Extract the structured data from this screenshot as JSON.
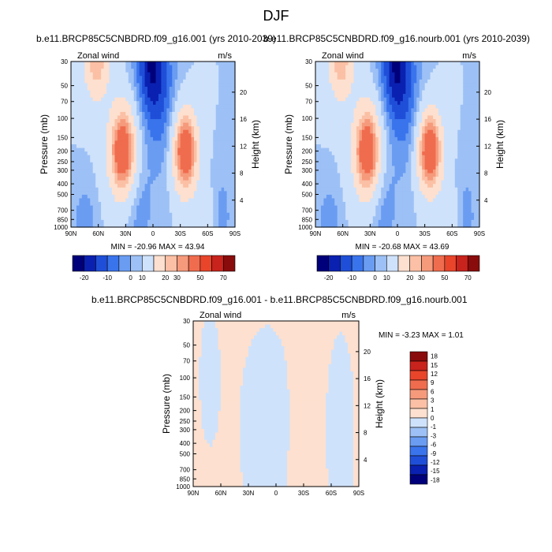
{
  "figure": {
    "title": "DJF"
  },
  "colors": {
    "zonal_scale": [
      "#00007a",
      "#0a20b0",
      "#1f4fd8",
      "#3a74ec",
      "#6a9cf2",
      "#9dc1f6",
      "#cfe2fb",
      "#fde0cf",
      "#fbc0a5",
      "#f69a7c",
      "#f06c4e",
      "#e8452b",
      "#c8231c",
      "#8a0b0b"
    ],
    "diff_scale": [
      "#00007a",
      "#0a20b0",
      "#1f4fd8",
      "#3a74ec",
      "#6a9cf2",
      "#9dc1f6",
      "#cfe2fb",
      "#fde0cf",
      "#fbc0a5",
      "#f69a7c",
      "#f06c4e",
      "#e8452b",
      "#c8231c",
      "#8a0b0b"
    ]
  },
  "chart_data": [
    {
      "type": "heatmap",
      "title": "b.e11.BRCP85C5CNBDRD.f09_g16.001 (yrs 2010-2039)",
      "left_label": "Zonal wind",
      "right_label": "m/s",
      "xlabel": "",
      "ylabel": "Pressure (mb)",
      "y2label": "Height (km)",
      "xticks": [
        "90N",
        "60N",
        "30N",
        "0",
        "30S",
        "60S",
        "90S"
      ],
      "yticks": [
        "30",
        "50",
        "70",
        "100",
        "150",
        "200",
        "250",
        "300",
        "400",
        "500",
        "700",
        "850",
        "1000"
      ],
      "y2ticks": [
        "20",
        "16",
        "12",
        "8",
        "4"
      ],
      "ylim": [
        1000,
        30
      ],
      "log_y": true,
      "stats": "MIN = -20.96  MAX =  43.94",
      "colorbar": {
        "levels": [
          "-20",
          "-10",
          "0",
          "10",
          "20",
          "30",
          "50",
          "70"
        ],
        "n_bins": 14
      },
      "features": [
        {
          "kind": "westerly_jet",
          "lat": -35,
          "pressure": 200,
          "max": 43.94
        },
        {
          "kind": "westerly_jet",
          "lat": 45,
          "pressure": 200,
          "max": 38
        },
        {
          "kind": "easterly",
          "lat": 5,
          "pressure": 30,
          "min": -20.96
        }
      ]
    },
    {
      "type": "heatmap",
      "title": "b.e11.BRCP85C5CNBDRD.f09_g16.nourb.001 (yrs 2010-2039)",
      "left_label": "Zonal wind",
      "right_label": "m/s",
      "xlabel": "",
      "ylabel": "Pressure (mb)",
      "y2label": "Height (km)",
      "xticks": [
        "90N",
        "60N",
        "30N",
        "0",
        "30S",
        "60S",
        "90S"
      ],
      "yticks": [
        "30",
        "50",
        "70",
        "100",
        "150",
        "200",
        "250",
        "300",
        "400",
        "500",
        "700",
        "850",
        "1000"
      ],
      "y2ticks": [
        "20",
        "16",
        "12",
        "8",
        "4"
      ],
      "ylim": [
        1000,
        30
      ],
      "log_y": true,
      "stats": "MIN = -20.68  MAX =  43.69",
      "colorbar": {
        "levels": [
          "-20",
          "-10",
          "0",
          "10",
          "20",
          "30",
          "50",
          "70"
        ],
        "n_bins": 14
      },
      "features": [
        {
          "kind": "westerly_jet",
          "lat": -35,
          "pressure": 200,
          "max": 43.69
        },
        {
          "kind": "westerly_jet",
          "lat": 45,
          "pressure": 200,
          "max": 38
        },
        {
          "kind": "easterly",
          "lat": 5,
          "pressure": 30,
          "min": -20.68
        }
      ]
    },
    {
      "type": "heatmap",
      "title": "b.e11.BRCP85C5CNBDRD.f09_g16.001 - b.e11.BRCP85C5CNBDRD.f09_g16.nourb.001",
      "left_label": "Zonal wind",
      "right_label": "m/s",
      "xlabel": "",
      "ylabel": "Pressure (mb)",
      "y2label": "Height (km)",
      "xticks": [
        "90N",
        "60N",
        "30N",
        "0",
        "30S",
        "60S",
        "90S"
      ],
      "yticks": [
        "30",
        "50",
        "70",
        "100",
        "150",
        "200",
        "250",
        "300",
        "400",
        "500",
        "700",
        "850",
        "1000"
      ],
      "y2ticks": [
        "20",
        "16",
        "12",
        "8",
        "4"
      ],
      "ylim": [
        1000,
        30
      ],
      "log_y": true,
      "stats": "MIN = -3.23  MAX =   1.01",
      "colorbar": {
        "levels": [
          "18",
          "15",
          "12",
          "9",
          "6",
          "3",
          "1",
          "0",
          "-1",
          "-3",
          "-6",
          "-9",
          "-12",
          "-15",
          "-18"
        ],
        "n_bins": 14
      }
    }
  ]
}
